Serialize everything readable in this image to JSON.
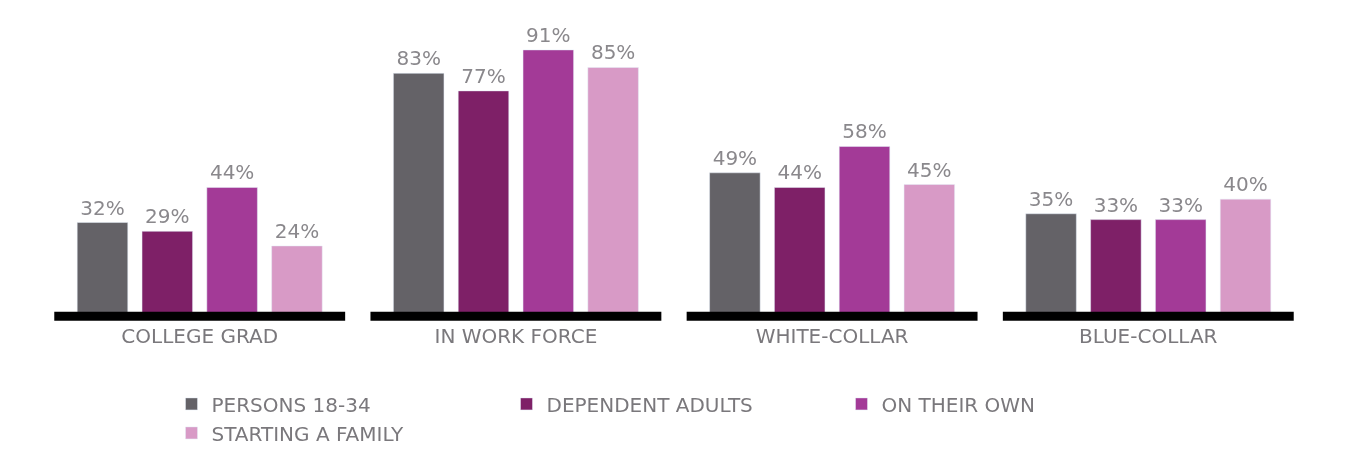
{
  "chart_data": {
    "type": "bar",
    "categories": [
      "COLLEGE GRAD",
      "IN WORK FORCE",
      "WHITE-COLLAR",
      "BLUE-COLLAR"
    ],
    "series": [
      {
        "name": "PERSONS 18-34",
        "color": "#646267",
        "values": [
          32,
          83,
          49,
          35
        ],
        "value_labels": [
          "32%",
          "83%",
          "49%",
          "35%"
        ]
      },
      {
        "name": "DEPENDENT ADULTS",
        "color": "#7e2067",
        "values": [
          29,
          77,
          44,
          33
        ],
        "value_labels": [
          "29%",
          "77%",
          "44%",
          "33%"
        ]
      },
      {
        "name": "ON THEIR OWN",
        "color": "#a33a97",
        "values": [
          44,
          91,
          58,
          33
        ],
        "value_labels": [
          "44%",
          "91%",
          "58%",
          "33%"
        ]
      },
      {
        "name": "STARTING A FAMILY",
        "color": "#d89ac6",
        "values": [
          24,
          85,
          45,
          40
        ],
        "value_labels": [
          "24%",
          "85%",
          "45%",
          "40%"
        ]
      }
    ],
    "legend": "bottom"
  }
}
